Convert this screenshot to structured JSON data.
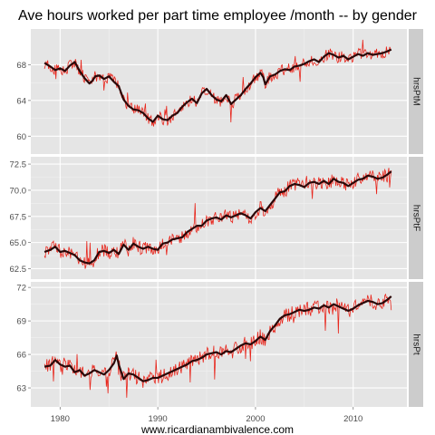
{
  "chart_data": {
    "type": "line",
    "title": "Ave hours worked per part time employee /month -- by gender",
    "xlabel": "www.ricardianambivalence.com",
    "ylabel": "",
    "xlim": [
      1977.0,
      2015.5
    ],
    "x_ticks": [
      1980,
      1990,
      2000,
      2010
    ],
    "grid": true,
    "legend": "none",
    "colors": {
      "raw": "#e8261c",
      "smooth": "#2a0808",
      "panel_bg": "#e5e5e5",
      "grid": "#ffffff",
      "strip_bg": "#cccccc"
    },
    "panels": [
      {
        "name": "hrsPtM",
        "ylim": [
          58,
          72
        ],
        "y_ticks": [
          60,
          64,
          68
        ],
        "y_tick_labels": [
          "60",
          "64",
          "68"
        ],
        "series": [
          {
            "values": [
              [
                1978.4,
                68.2
              ],
              [
                1979.0,
                67.8
              ],
              [
                1979.5,
                67.4
              ],
              [
                1980.0,
                67.6
              ],
              [
                1980.5,
                67.3
              ],
              [
                1981.0,
                67.9
              ],
              [
                1981.5,
                68.3
              ],
              [
                1982.0,
                67.3
              ],
              [
                1982.5,
                66.5
              ],
              [
                1983.0,
                65.9
              ],
              [
                1983.3,
                66.2
              ],
              [
                1983.6,
                66.7
              ],
              [
                1984.0,
                66.8
              ],
              [
                1984.5,
                66.4
              ],
              [
                1985.0,
                66.7
              ],
              [
                1985.5,
                66.1
              ],
              [
                1986.0,
                65.6
              ],
              [
                1986.5,
                64.1
              ],
              [
                1987.0,
                63.4
              ],
              [
                1987.5,
                63.0
              ],
              [
                1988.0,
                62.9
              ],
              [
                1988.5,
                62.6
              ],
              [
                1989.0,
                62.0
              ],
              [
                1989.5,
                61.6
              ],
              [
                1990.0,
                62.3
              ],
              [
                1990.5,
                61.9
              ],
              [
                1991.0,
                61.8
              ],
              [
                1991.5,
                62.3
              ],
              [
                1992.0,
                62.6
              ],
              [
                1992.5,
                63.3
              ],
              [
                1993.0,
                63.8
              ],
              [
                1993.5,
                64.2
              ],
              [
                1994.0,
                63.7
              ],
              [
                1994.5,
                64.8
              ],
              [
                1995.0,
                65.3
              ],
              [
                1995.5,
                64.6
              ],
              [
                1996.0,
                64.1
              ],
              [
                1996.5,
                63.9
              ],
              [
                1997.0,
                64.6
              ],
              [
                1997.5,
                63.6
              ],
              [
                1998.0,
                64.1
              ],
              [
                1998.5,
                64.6
              ],
              [
                1999.0,
                65.3
              ],
              [
                1999.5,
                65.9
              ],
              [
                2000.0,
                66.6
              ],
              [
                2000.5,
                67.1
              ],
              [
                2000.8,
                66.6
              ],
              [
                2001.0,
                65.8
              ],
              [
                2001.5,
                66.7
              ],
              [
                2002.0,
                66.9
              ],
              [
                2002.5,
                67.3
              ],
              [
                2003.0,
                67.5
              ],
              [
                2003.5,
                67.4
              ],
              [
                2004.0,
                67.8
              ],
              [
                2004.5,
                67.9
              ],
              [
                2005.0,
                68.1
              ],
              [
                2005.5,
                68.4
              ],
              [
                2006.0,
                68.6
              ],
              [
                2006.5,
                68.3
              ],
              [
                2007.0,
                68.9
              ],
              [
                2007.5,
                69.3
              ],
              [
                2008.0,
                69.1
              ],
              [
                2008.5,
                68.8
              ],
              [
                2009.0,
                69.0
              ],
              [
                2009.5,
                68.6
              ],
              [
                2010.0,
                68.9
              ],
              [
                2010.5,
                69.2
              ],
              [
                2011.0,
                69.0
              ],
              [
                2011.5,
                69.3
              ],
              [
                2012.0,
                69.1
              ],
              [
                2012.5,
                69.2
              ],
              [
                2013.0,
                69.3
              ],
              [
                2013.5,
                69.5
              ],
              [
                2013.9,
                69.7
              ]
            ]
          }
        ]
      },
      {
        "name": "hrsPtF",
        "ylim": [
          61.5,
          73.2
        ],
        "y_ticks": [
          62.5,
          65.0,
          67.5,
          70.0,
          72.5
        ],
        "y_tick_labels": [
          "62.5",
          "65.0",
          "67.5",
          "70.0",
          "72.5"
        ],
        "series": [
          {
            "values": [
              [
                1978.4,
                64.1
              ],
              [
                1979.0,
                64.3
              ],
              [
                1979.5,
                64.6
              ],
              [
                1980.0,
                64.1
              ],
              [
                1980.5,
                64.2
              ],
              [
                1981.0,
                64.0
              ],
              [
                1981.5,
                63.8
              ],
              [
                1982.0,
                63.3
              ],
              [
                1982.5,
                63.1
              ],
              [
                1983.0,
                63.0
              ],
              [
                1983.5,
                63.3
              ],
              [
                1984.0,
                64.1
              ],
              [
                1984.5,
                64.2
              ],
              [
                1985.0,
                64.0
              ],
              [
                1985.5,
                64.3
              ],
              [
                1986.0,
                63.9
              ],
              [
                1986.5,
                64.8
              ],
              [
                1987.0,
                64.3
              ],
              [
                1987.5,
                64.9
              ],
              [
                1988.0,
                64.6
              ],
              [
                1988.5,
                64.4
              ],
              [
                1989.0,
                64.6
              ],
              [
                1989.5,
                64.4
              ],
              [
                1990.0,
                64.3
              ],
              [
                1990.5,
                64.9
              ],
              [
                1991.0,
                65.0
              ],
              [
                1991.5,
                65.3
              ],
              [
                1992.0,
                65.4
              ],
              [
                1992.5,
                65.5
              ],
              [
                1993.0,
                66.0
              ],
              [
                1993.5,
                66.3
              ],
              [
                1994.0,
                66.6
              ],
              [
                1994.5,
                66.6
              ],
              [
                1995.0,
                67.1
              ],
              [
                1995.5,
                67.3
              ],
              [
                1996.0,
                67.4
              ],
              [
                1996.5,
                67.2
              ],
              [
                1997.0,
                67.6
              ],
              [
                1997.5,
                67.4
              ],
              [
                1998.0,
                67.6
              ],
              [
                1998.5,
                67.8
              ],
              [
                1999.0,
                67.6
              ],
              [
                1999.5,
                67.3
              ],
              [
                2000.0,
                67.9
              ],
              [
                2000.5,
                68.3
              ],
              [
                2001.0,
                68.0
              ],
              [
                2001.5,
                68.6
              ],
              [
                2002.0,
                69.2
              ],
              [
                2002.5,
                69.8
              ],
              [
                2003.0,
                69.9
              ],
              [
                2003.5,
                70.4
              ],
              [
                2004.0,
                70.6
              ],
              [
                2004.5,
                70.5
              ],
              [
                2005.0,
                70.3
              ],
              [
                2005.5,
                70.7
              ],
              [
                2006.0,
                70.8
              ],
              [
                2006.5,
                70.6
              ],
              [
                2007.0,
                70.9
              ],
              [
                2007.5,
                70.6
              ],
              [
                2008.0,
                71.1
              ],
              [
                2008.5,
                70.8
              ],
              [
                2009.0,
                70.7
              ],
              [
                2009.5,
                70.4
              ],
              [
                2010.0,
                70.7
              ],
              [
                2010.5,
                71.0
              ],
              [
                2011.0,
                71.1
              ],
              [
                2011.5,
                71.4
              ],
              [
                2012.0,
                71.3
              ],
              [
                2012.5,
                71.1
              ],
              [
                2013.0,
                71.2
              ],
              [
                2013.5,
                71.5
              ],
              [
                2013.9,
                71.8
              ]
            ]
          }
        ]
      },
      {
        "name": "hrsPt",
        "ylim": [
          61.3,
          72.5
        ],
        "y_ticks": [
          63,
          66,
          69,
          72
        ],
        "y_tick_labels": [
          "63",
          "66",
          "69",
          "72"
        ],
        "series": [
          {
            "values": [
              [
                1978.4,
                64.9
              ],
              [
                1979.0,
                65.0
              ],
              [
                1979.5,
                65.5
              ],
              [
                1980.0,
                65.1
              ],
              [
                1980.5,
                64.9
              ],
              [
                1981.0,
                65.0
              ],
              [
                1981.5,
                64.4
              ],
              [
                1982.0,
                64.6
              ],
              [
                1982.5,
                64.1
              ],
              [
                1983.0,
                64.3
              ],
              [
                1983.5,
                64.6
              ],
              [
                1984.0,
                64.4
              ],
              [
                1984.5,
                64.2
              ],
              [
                1985.0,
                64.6
              ],
              [
                1985.5,
                65.2
              ],
              [
                1985.8,
                65.9
              ],
              [
                1986.0,
                65.1
              ],
              [
                1986.5,
                63.8
              ],
              [
                1987.0,
                64.3
              ],
              [
                1987.5,
                64.2
              ],
              [
                1988.0,
                63.9
              ],
              [
                1988.5,
                63.6
              ],
              [
                1989.0,
                63.7
              ],
              [
                1989.5,
                63.9
              ],
              [
                1990.0,
                63.9
              ],
              [
                1990.5,
                64.1
              ],
              [
                1991.0,
                64.3
              ],
              [
                1991.5,
                64.5
              ],
              [
                1992.0,
                64.7
              ],
              [
                1992.5,
                64.9
              ],
              [
                1993.0,
                65.1
              ],
              [
                1993.5,
                65.4
              ],
              [
                1994.0,
                65.5
              ],
              [
                1994.5,
                65.7
              ],
              [
                1995.0,
                66.0
              ],
              [
                1995.5,
                66.1
              ],
              [
                1996.0,
                66.2
              ],
              [
                1996.5,
                66.0
              ],
              [
                1997.0,
                66.3
              ],
              [
                1997.5,
                66.2
              ],
              [
                1998.0,
                66.5
              ],
              [
                1998.5,
                66.8
              ],
              [
                1999.0,
                67.0
              ],
              [
                1999.5,
                66.9
              ],
              [
                2000.0,
                67.2
              ],
              [
                2000.5,
                67.6
              ],
              [
                2001.0,
                67.3
              ],
              [
                2001.5,
                68.1
              ],
              [
                2002.0,
                68.6
              ],
              [
                2002.5,
                69.2
              ],
              [
                2003.0,
                69.5
              ],
              [
                2003.5,
                69.6
              ],
              [
                2004.0,
                69.8
              ],
              [
                2004.5,
                70.0
              ],
              [
                2005.0,
                69.9
              ],
              [
                2005.5,
                70.0
              ],
              [
                2006.0,
                70.2
              ],
              [
                2006.5,
                70.1
              ],
              [
                2007.0,
                70.4
              ],
              [
                2007.5,
                70.2
              ],
              [
                2008.0,
                70.5
              ],
              [
                2008.5,
                70.3
              ],
              [
                2009.0,
                70.1
              ],
              [
                2009.5,
                69.9
              ],
              [
                2010.0,
                70.1
              ],
              [
                2010.5,
                70.4
              ],
              [
                2011.0,
                70.6
              ],
              [
                2011.5,
                70.8
              ],
              [
                2012.0,
                70.7
              ],
              [
                2012.5,
                70.5
              ],
              [
                2013.0,
                70.6
              ],
              [
                2013.5,
                70.9
              ],
              [
                2013.9,
                71.2
              ]
            ]
          }
        ]
      }
    ]
  }
}
